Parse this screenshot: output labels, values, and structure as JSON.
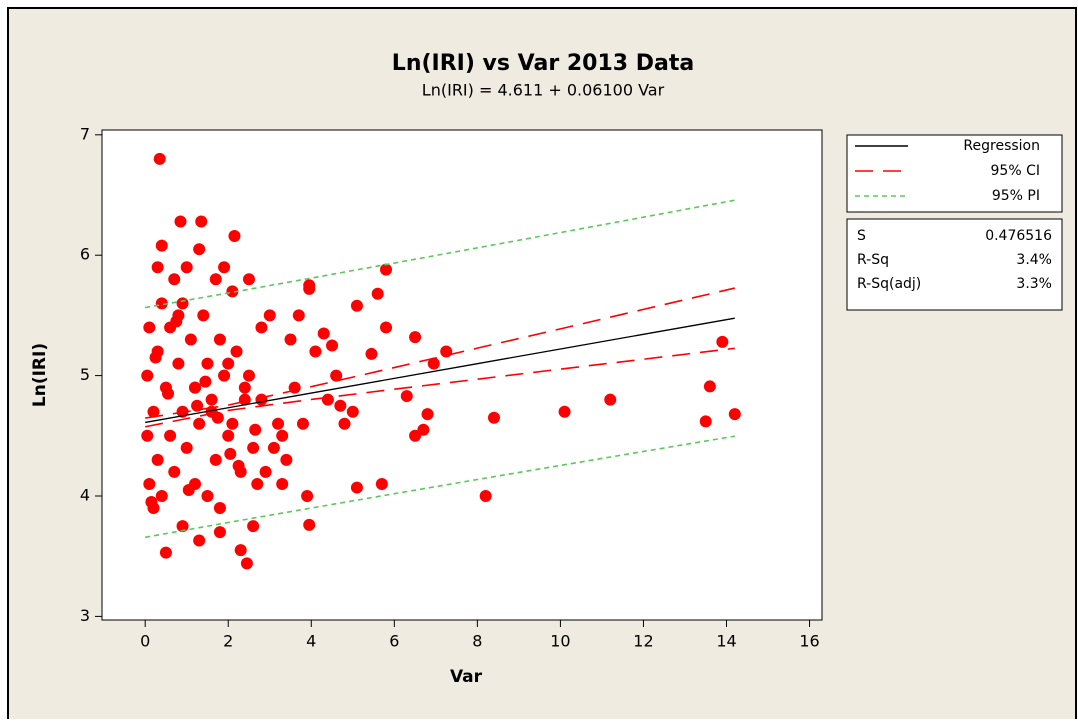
{
  "chart_data": {
    "type": "scatter",
    "title": "Ln(IRI) vs Var 2013 Data",
    "subtitle": "Ln(IRI) =  4.611 + 0.06100 Var",
    "x_label": "Var",
    "y_label": "Ln(IRI)",
    "xlim": [
      -1.04,
      16.3
    ],
    "ylim": [
      2.97,
      7.04
    ],
    "xticks": [
      0,
      2,
      4,
      6,
      8,
      10,
      12,
      14,
      16
    ],
    "yticks": [
      3,
      4,
      5,
      6,
      7
    ],
    "points": {
      "color": "#ff0000",
      "x": [
        0.35,
        0.85,
        1.35,
        0.4,
        2.15,
        1.3,
        5.8,
        3.95,
        3.95,
        5.6,
        5.1,
        5.45,
        5.8,
        6.5,
        7.25,
        6.95,
        13.9,
        11.2,
        10.1,
        8.4,
        6.8,
        6.5,
        6.7,
        6.3,
        13.6,
        13.5,
        14.2,
        8.2,
        5.7,
        5.1,
        3.9,
        3.95,
        2.45,
        0.5,
        1.3,
        4.5,
        4.7,
        4.8,
        5.0,
        4.6,
        4.3,
        3.5,
        3.0,
        3.3,
        3.1,
        2.9,
        2.7,
        3.3,
        2.6,
        2.3,
        1.8,
        0.9,
        0.2,
        0.1,
        0.05,
        0.05,
        0.1,
        0.3,
        0.7,
        1.0,
        1.7,
        1.9,
        2.5,
        2.8,
        3.7,
        0.3,
        0.6,
        0.9,
        1.2,
        1.5,
        1.8,
        2.1,
        2.4,
        0.4,
        0.7,
        1.0,
        1.3,
        1.6,
        1.9,
        2.2,
        2.5,
        2.8,
        0.2,
        0.5,
        0.8,
        1.1,
        1.4,
        1.7,
        2.0,
        2.3,
        2.6,
        0.3,
        0.6,
        0.9,
        1.2,
        1.5,
        1.8,
        2.1,
        0.4,
        0.8,
        1.2,
        1.6,
        2.0,
        2.4,
        3.2,
        3.6,
        4.1,
        4.4,
        3.4,
        3.8,
        0.15,
        0.55,
        1.05,
        1.45,
        2.05,
        2.65,
        0.25,
        0.75,
        1.25,
        1.75,
        2.25
      ],
      "y": [
        6.8,
        6.28,
        6.28,
        6.08,
        6.16,
        6.05,
        5.88,
        5.75,
        5.72,
        5.68,
        5.58,
        5.18,
        5.4,
        5.32,
        5.2,
        5.1,
        5.28,
        4.8,
        4.7,
        4.65,
        4.68,
        4.5,
        4.55,
        4.83,
        4.91,
        4.62,
        4.68,
        4.0,
        4.1,
        4.07,
        4.0,
        3.76,
        3.44,
        3.53,
        3.63,
        5.25,
        4.75,
        4.6,
        4.7,
        5.0,
        5.35,
        5.3,
        5.5,
        4.5,
        4.4,
        4.2,
        4.1,
        4.1,
        3.75,
        3.55,
        3.7,
        3.75,
        3.9,
        4.1,
        4.5,
        5.0,
        5.4,
        5.9,
        5.8,
        5.9,
        5.8,
        5.9,
        5.8,
        5.4,
        5.5,
        4.3,
        4.5,
        4.7,
        4.9,
        5.1,
        5.3,
        4.6,
        4.8,
        4.0,
        4.2,
        4.4,
        4.6,
        4.8,
        5.0,
        5.2,
        5.0,
        4.8,
        4.7,
        4.9,
        5.1,
        5.3,
        5.5,
        4.3,
        4.5,
        4.2,
        4.4,
        5.2,
        5.4,
        5.6,
        4.1,
        4.0,
        3.9,
        5.7,
        5.6,
        5.5,
        4.9,
        4.7,
        5.1,
        4.9,
        4.6,
        4.9,
        5.2,
        4.8,
        4.3,
        4.6,
        3.95,
        4.85,
        4.05,
        4.95,
        4.35,
        4.55,
        5.15,
        5.45,
        4.75,
        4.65,
        4.25
      ]
    },
    "line_x": [
      0,
      2,
      4,
      6,
      8,
      10,
      12,
      14.2
    ],
    "series": [
      {
        "name": "Regression",
        "color": "#000000",
        "dash": "none",
        "values": [
          4.611,
          4.733,
          4.855,
          4.977,
          5.099,
          5.221,
          5.343,
          5.477
        ]
      },
      {
        "name": "95% CI",
        "color": "#ff0000",
        "dash": "18 10",
        "values": [
          4.647,
          4.755,
          4.908,
          5.067,
          5.228,
          5.388,
          5.55,
          5.727
        ]
      },
      {
        "name": "95% CI",
        "color": "#ff0000",
        "dash": "18 10",
        "values": [
          4.575,
          4.711,
          4.802,
          4.887,
          4.97,
          5.054,
          5.136,
          5.227
        ]
      },
      {
        "name": "95% PI",
        "color": "#5cc85c",
        "dash": "5 4",
        "values": [
          5.565,
          5.686,
          5.81,
          5.935,
          6.061,
          6.188,
          6.316,
          6.457
        ]
      },
      {
        "name": "95% PI",
        "color": "#5cc85c",
        "dash": "5 4",
        "values": [
          3.657,
          3.78,
          3.9,
          4.019,
          4.137,
          4.254,
          4.37,
          4.497
        ]
      }
    ],
    "legend_entries": [
      0,
      1,
      3
    ],
    "stats": [
      {
        "label": "S",
        "value": "0.476516"
      },
      {
        "label": "R-Sq",
        "value": "3.4%"
      },
      {
        "label": "R-Sq(adj)",
        "value": "3.3%"
      }
    ]
  }
}
